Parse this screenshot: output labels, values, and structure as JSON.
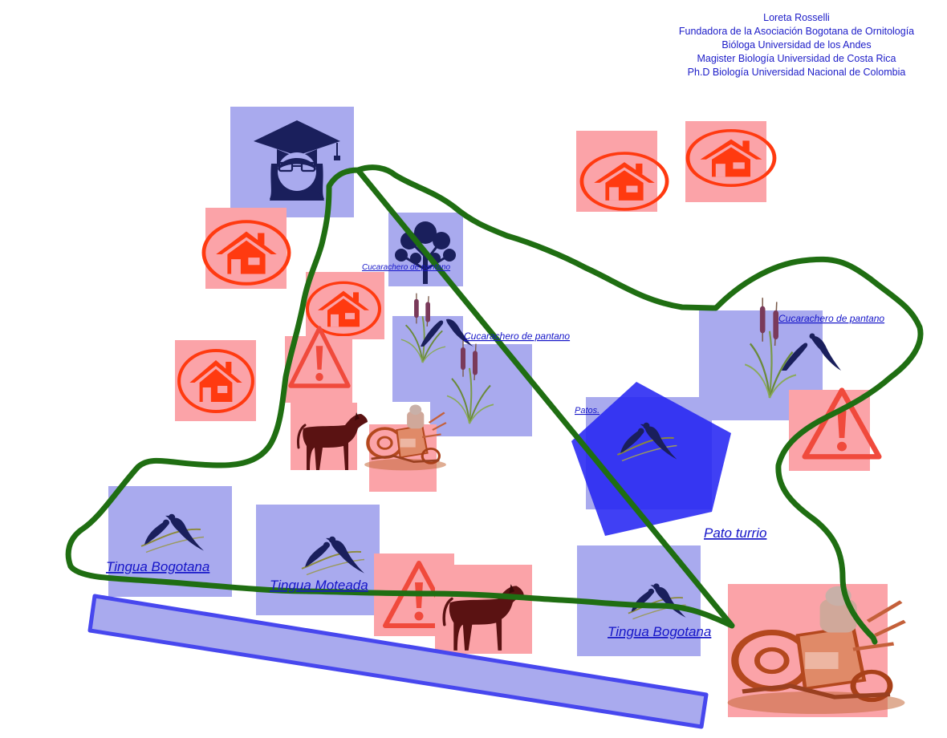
{
  "credits": [
    "Loreta Rosselli",
    "Fundadora de la Asociación Bogotana de Ornitología",
    "Bióloga Universidad de los Andes",
    "Magister Biología Universidad de Costa Rica",
    "Ph.D Biología Universidad Nacional de Colombia"
  ],
  "labels": {
    "cucarachero_small": "Cucarachero de pantano",
    "cucarachero_center": "Cucarachero de pantano",
    "cucarachero_right": "Cucarachero de pantano",
    "patos": "Patos.",
    "pato_turrio": "Pato turrio",
    "tingua_bogotana_left": "Tingua Bogotana",
    "tingua_moteada": "Tingua Moteada",
    "tingua_bogotana_right": "Tingua Bogotana"
  },
  "colors": {
    "blue_box": "#a9aaee",
    "red_box": "#fba3a8",
    "path": "#1f6e12",
    "link": "#1515c8",
    "house": "#ff3a10",
    "warning": "#f04a3c",
    "navy_icon": "#1a1f5c",
    "pentagon": "#2626f2"
  },
  "icons": [
    "graduate-icon",
    "house-icon",
    "tree-icon",
    "warning-icon",
    "dog-icon",
    "bird-icon",
    "reed-icon",
    "junk-pile-icon"
  ]
}
